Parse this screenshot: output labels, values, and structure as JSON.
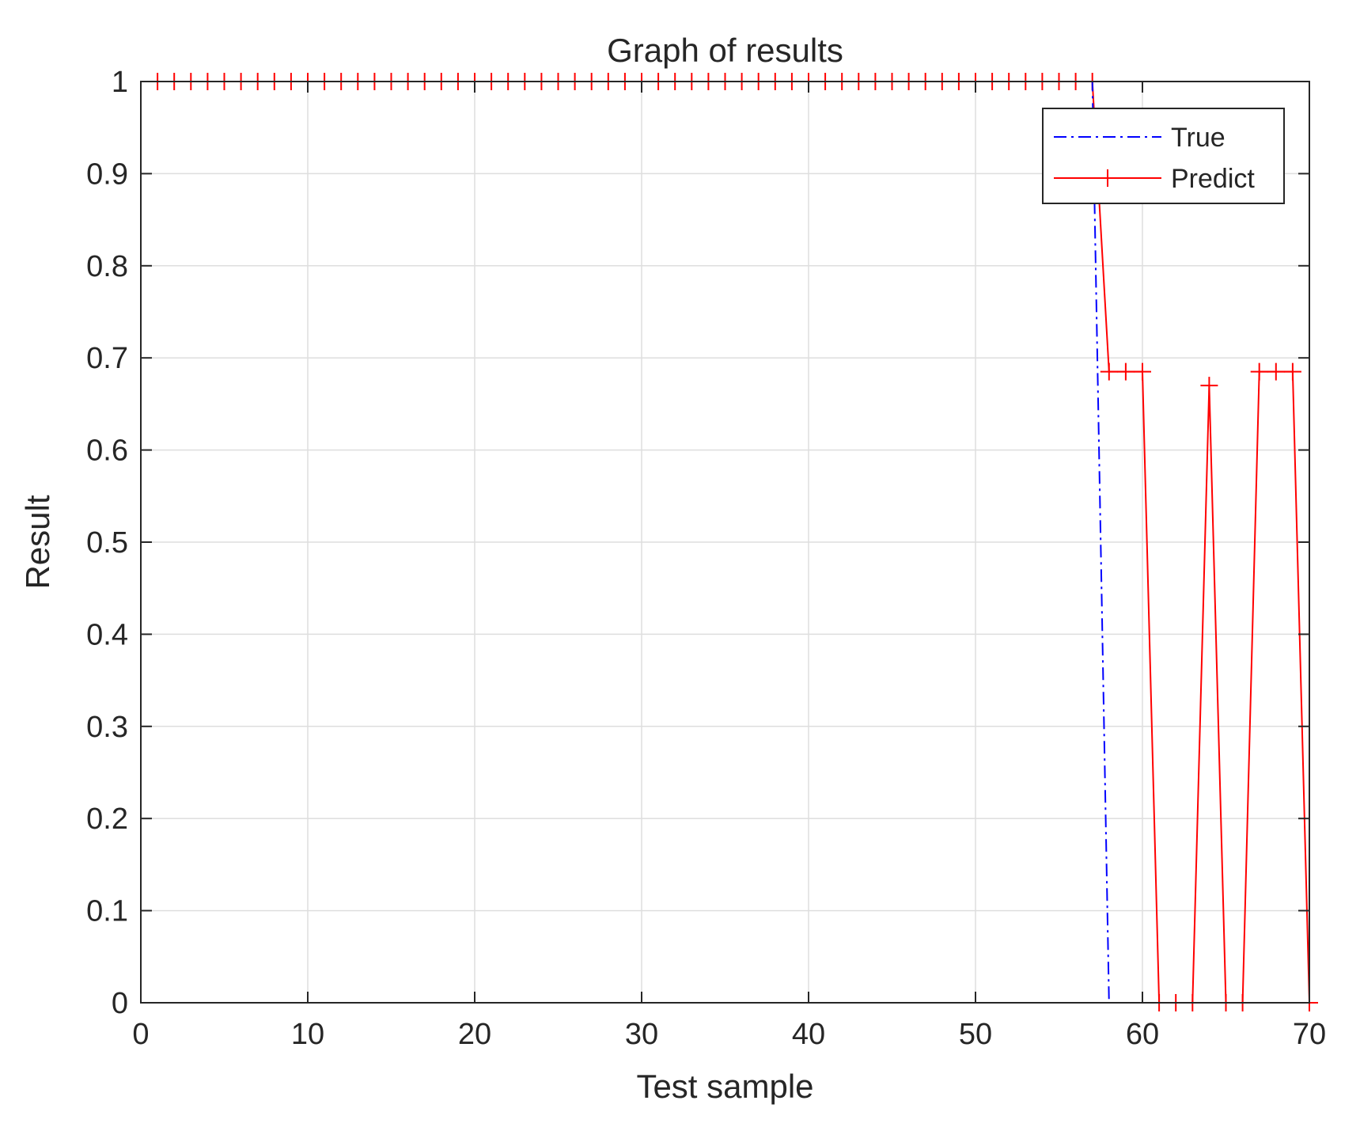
{
  "chart_data": {
    "type": "line",
    "title": "Graph of results",
    "xlabel": "Test sample",
    "ylabel": "Result",
    "xlim": [
      0,
      70
    ],
    "ylim": [
      0,
      1
    ],
    "xticks": [
      0,
      10,
      20,
      30,
      40,
      50,
      60,
      70
    ],
    "yticks": [
      0,
      0.1,
      0.2,
      0.3,
      0.4,
      0.5,
      0.6,
      0.7,
      0.8,
      0.9,
      1
    ],
    "grid": true,
    "legend_position": "top-right",
    "x": [
      1,
      2,
      3,
      4,
      5,
      6,
      7,
      8,
      9,
      10,
      11,
      12,
      13,
      14,
      15,
      16,
      17,
      18,
      19,
      20,
      21,
      22,
      23,
      24,
      25,
      26,
      27,
      28,
      29,
      30,
      31,
      32,
      33,
      34,
      35,
      36,
      37,
      38,
      39,
      40,
      41,
      42,
      43,
      44,
      45,
      46,
      47,
      48,
      49,
      50,
      51,
      52,
      53,
      54,
      55,
      56,
      57,
      58,
      59,
      60,
      61,
      62,
      63,
      64,
      65,
      66,
      67,
      68,
      69,
      70
    ],
    "series": [
      {
        "name": "True",
        "color": "#0000ff",
        "line_style": "dash-dot",
        "marker": "none",
        "values": [
          1,
          1,
          1,
          1,
          1,
          1,
          1,
          1,
          1,
          1,
          1,
          1,
          1,
          1,
          1,
          1,
          1,
          1,
          1,
          1,
          1,
          1,
          1,
          1,
          1,
          1,
          1,
          1,
          1,
          1,
          1,
          1,
          1,
          1,
          1,
          1,
          1,
          1,
          1,
          1,
          1,
          1,
          1,
          1,
          1,
          1,
          1,
          1,
          1,
          1,
          1,
          1,
          1,
          1,
          1,
          1,
          1,
          0,
          0,
          0,
          0,
          0,
          0,
          0,
          0,
          0,
          0,
          0,
          0,
          0
        ]
      },
      {
        "name": "Predict",
        "color": "#ff0000",
        "line_style": "solid",
        "marker": "plus",
        "values": [
          1,
          1,
          1,
          1,
          1,
          1,
          1,
          1,
          1,
          1,
          1,
          1,
          1,
          1,
          1,
          1,
          1,
          1,
          1,
          1,
          1,
          1,
          1,
          1,
          1,
          1,
          1,
          1,
          1,
          1,
          1,
          1,
          1,
          1,
          1,
          1,
          1,
          1,
          1,
          1,
          1,
          1,
          1,
          1,
          1,
          1,
          1,
          1,
          1,
          1,
          1,
          1,
          1,
          1,
          1,
          1,
          1,
          0.685,
          0.685,
          0.685,
          0,
          0,
          0,
          0.67,
          0,
          0,
          0.685,
          0.685,
          0.685,
          0
        ]
      }
    ]
  }
}
